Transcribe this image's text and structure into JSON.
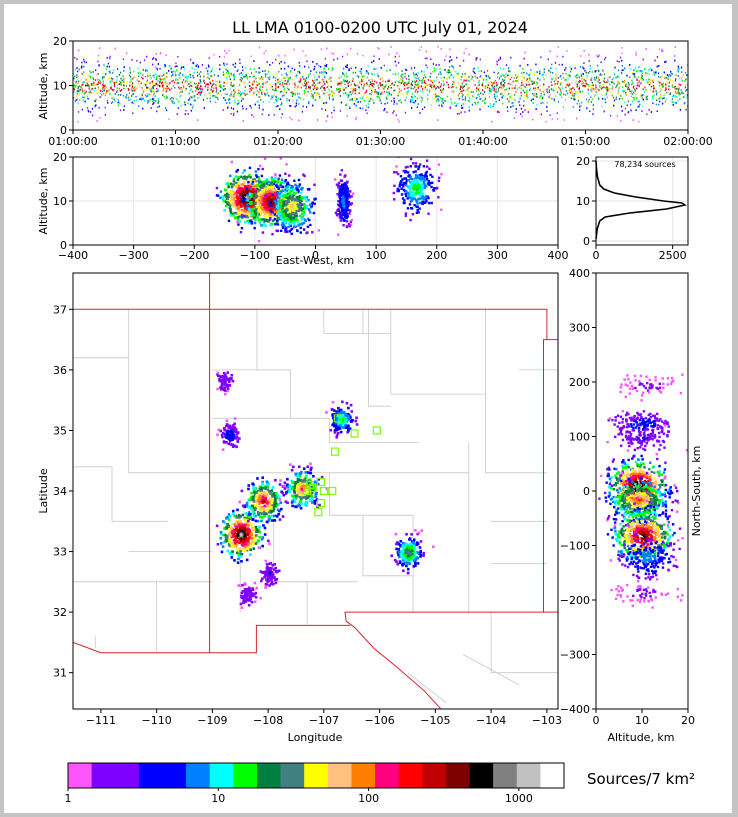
{
  "title": "LL LMA 0100-0200 UTC July 01, 2024",
  "colors": {
    "background": "#ffffff",
    "frame": "#c4c4c4",
    "state_border": "#d62728",
    "county_lines": "#c8c8c8",
    "station_marker": "#7cfc00",
    "histogram": "#000000"
  },
  "chart_data": [
    {
      "id": "time-height",
      "type": "scatter",
      "ylabel": "Altitude, km",
      "xlabel": "",
      "x_ticks": [
        "01:00:00",
        "01:10:00",
        "01:20:00",
        "01:30:00",
        "01:40:00",
        "01:50:00",
        "02:00:00"
      ],
      "xlim_minutes": [
        0,
        60
      ],
      "ylim": [
        0,
        20
      ],
      "y_ticks": [
        "0",
        "10",
        "20"
      ],
      "grid": false,
      "series_summary": {
        "main_altitude_band_km": [
          6,
          14
        ],
        "peak_altitude_km": 10,
        "sparse_altitude_range_km": [
          2,
          19
        ]
      }
    },
    {
      "id": "east-west-altitude",
      "type": "heatmap",
      "xlabel": "East-West, km",
      "ylabel": "Altitude, km",
      "xlim": [
        -400,
        400
      ],
      "x_ticks": [
        "−400",
        "−300",
        "−200",
        "−100",
        "0",
        "100",
        "200",
        "300",
        "400"
      ],
      "ylim": [
        0,
        20
      ],
      "y_ticks": [
        "0",
        "10",
        "20"
      ],
      "grid": true,
      "clusters": [
        {
          "x": -115,
          "y": 11,
          "intensity": 1000
        },
        {
          "x": -75,
          "y": 10,
          "intensity": 900
        },
        {
          "x": -40,
          "y": 9,
          "intensity": 600
        },
        {
          "x": 45,
          "y": 10,
          "intensity": 300
        },
        {
          "x": 165,
          "y": 13,
          "intensity": 400
        }
      ]
    },
    {
      "id": "altitude-histogram",
      "type": "line",
      "annotation": "78,234 sources",
      "xlim": [
        0,
        3000
      ],
      "x_ticks": [
        "0",
        "2500"
      ],
      "ylim": [
        0,
        20
      ],
      "y_ticks": [
        "0",
        "10",
        "20"
      ],
      "grid": true,
      "profile": [
        [
          0.5,
          0
        ],
        [
          3,
          40
        ],
        [
          5,
          120
        ],
        [
          6,
          300
        ],
        [
          7,
          1100
        ],
        [
          8,
          2300
        ],
        [
          9,
          2900
        ],
        [
          9.5,
          2800
        ],
        [
          10,
          2200
        ],
        [
          11,
          1300
        ],
        [
          12,
          600
        ],
        [
          13,
          250
        ],
        [
          14,
          120
        ],
        [
          16,
          50
        ],
        [
          18,
          15
        ],
        [
          20,
          0
        ]
      ]
    },
    {
      "id": "plan-view",
      "type": "heatmap",
      "xlabel": "Longitude",
      "ylabel": "Latitude",
      "xlim": [
        -111.5,
        -102.8
      ],
      "ylim": [
        30.4,
        37.6
      ],
      "x_ticks": [
        "−111",
        "−110",
        "−109",
        "−108",
        "−107",
        "−106",
        "−105",
        "−104",
        "−103"
      ],
      "y_ticks": [
        "31",
        "32",
        "33",
        "34",
        "35",
        "36",
        "37"
      ],
      "grid": false,
      "clusters": [
        {
          "lon": -108.5,
          "lat": 33.3,
          "intensity": 1000
        },
        {
          "lon": -108.1,
          "lat": 33.85,
          "intensity": 800
        },
        {
          "lon": -107.4,
          "lat": 34.05,
          "intensity": 700
        },
        {
          "lon": -106.7,
          "lat": 35.2,
          "intensity": 400
        },
        {
          "lon": -105.5,
          "lat": 33.0,
          "intensity": 500
        },
        {
          "lon": -108.7,
          "lat": 34.95,
          "intensity": 200
        },
        {
          "lon": -108.8,
          "lat": 35.85,
          "intensity": 100
        },
        {
          "lon": -108.0,
          "lat": 32.65,
          "intensity": 150
        },
        {
          "lon": -108.4,
          "lat": 32.3,
          "intensity": 120
        }
      ],
      "stations": [
        {
          "lon": -106.75,
          "lat": 35.2
        },
        {
          "lon": -106.45,
          "lat": 34.95
        },
        {
          "lon": -106.05,
          "lat": 35.0
        },
        {
          "lon": -106.8,
          "lat": 34.65
        },
        {
          "lon": -107.05,
          "lat": 34.15
        },
        {
          "lon": -107.2,
          "lat": 34.05
        },
        {
          "lon": -107.3,
          "lat": 34.0
        },
        {
          "lon": -107.0,
          "lat": 34.0
        },
        {
          "lon": -106.85,
          "lat": 34.0
        },
        {
          "lon": -107.05,
          "lat": 33.8
        },
        {
          "lon": -107.1,
          "lat": 33.65
        },
        {
          "lon": -107.25,
          "lat": 34.1
        }
      ]
    },
    {
      "id": "altitude-north-south",
      "type": "heatmap",
      "xlabel": "Altitude, km",
      "ylabel": "North-South, km",
      "xlim": [
        0,
        20
      ],
      "x_ticks": [
        "0",
        "10",
        "20"
      ],
      "ylim": [
        -400,
        400
      ],
      "y_ticks": [
        "−400",
        "−300",
        "−200",
        "−100",
        "0",
        "100",
        "200",
        "300",
        "400"
      ],
      "grid": false,
      "clusters": [
        {
          "x": 10,
          "y": 125,
          "intensity": 200
        },
        {
          "x": 10,
          "y": 100,
          "intensity": 150
        },
        {
          "x": 9,
          "y": 10,
          "intensity": 1000
        },
        {
          "x": 9,
          "y": -15,
          "intensity": 700
        },
        {
          "x": 10,
          "y": -80,
          "intensity": 900
        },
        {
          "x": 11,
          "y": -120,
          "intensity": 300
        },
        {
          "x": 11,
          "y": 195,
          "intensity": 40
        },
        {
          "x": 10,
          "y": -185,
          "intensity": 40
        }
      ]
    },
    {
      "id": "colorbar",
      "type": "table",
      "label": "Sources/7 km²",
      "tick_labels": [
        "1",
        "10",
        "100",
        "1000"
      ],
      "colors": [
        "#ff55ff",
        "#8000ff",
        "#8000ff",
        "#0000ff",
        "#0000ff",
        "#0080ff",
        "#00ffff",
        "#00ff00",
        "#008040",
        "#408080",
        "#ffff00",
        "#ffc080",
        "#ff8000",
        "#ff0080",
        "#ff0000",
        "#c00000",
        "#800000",
        "#000000",
        "#808080",
        "#c0c0c0",
        "#ffffff"
      ]
    }
  ]
}
